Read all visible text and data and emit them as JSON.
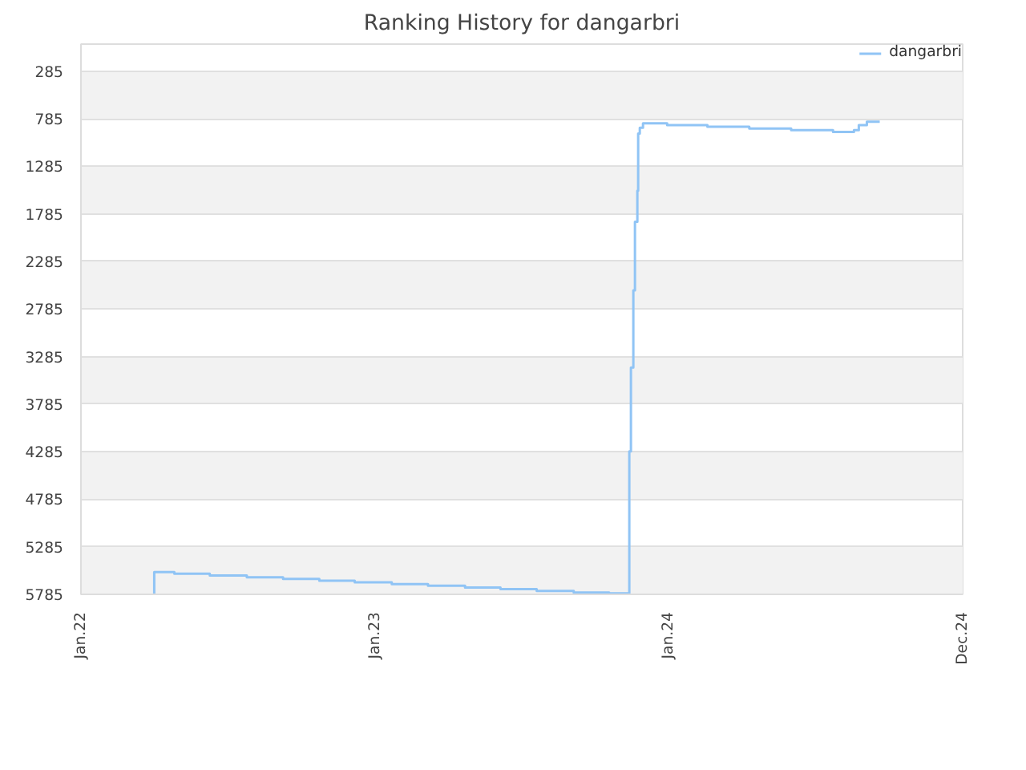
{
  "chart_data": {
    "type": "step",
    "title": "Ranking History for dangarbri",
    "x": [
      "2022-04-01",
      "2022-04-02",
      "2022-04-27",
      "2022-06-10",
      "2022-07-26",
      "2022-09-09",
      "2022-10-24",
      "2022-12-07",
      "2023-01-22",
      "2023-03-08",
      "2023-04-23",
      "2023-06-06",
      "2023-07-21",
      "2023-09-05",
      "2023-10-19",
      "2023-11-13",
      "2023-11-15",
      "2023-11-18",
      "2023-11-20",
      "2023-11-23",
      "2023-11-24",
      "2023-11-26",
      "2023-11-30",
      "2023-12-05",
      "2023-12-30",
      "2024-02-18",
      "2024-04-10",
      "2024-06-01",
      "2024-07-23",
      "2024-08-18",
      "2024-08-24",
      "2024-09-03",
      "2024-09-10",
      "2024-09-19"
    ],
    "series": [
      {
        "name": "dangarbri",
        "color": "#90c4f5",
        "values": [
          5785,
          5550,
          5568,
          5586,
          5605,
          5623,
          5641,
          5659,
          5677,
          5695,
          5713,
          5731,
          5749,
          5767,
          5775,
          4281,
          3401,
          2589,
          1867,
          1542,
          940,
          880,
          833,
          833,
          851,
          869,
          887,
          905,
          923,
          905,
          851,
          815,
          815,
          815
        ]
      }
    ],
    "xlim": [
      "2022-01-01",
      "2024-12-31"
    ],
    "xticks": [
      {
        "value": "2022-01-01",
        "label": "Jan.22"
      },
      {
        "value": "2023-01-01",
        "label": "Jan.23"
      },
      {
        "value": "2024-01-01",
        "label": "Jan.24"
      },
      {
        "value": "2024-12-31",
        "label": "Dec.24"
      }
    ],
    "ylim": [
      5785,
      0
    ],
    "yticks": [
      285,
      785,
      1285,
      1785,
      2285,
      2785,
      3285,
      3785,
      4285,
      4785,
      5285,
      5785
    ],
    "grid": "y",
    "legend": "top right",
    "marker": "none",
    "line_style": "solid"
  }
}
